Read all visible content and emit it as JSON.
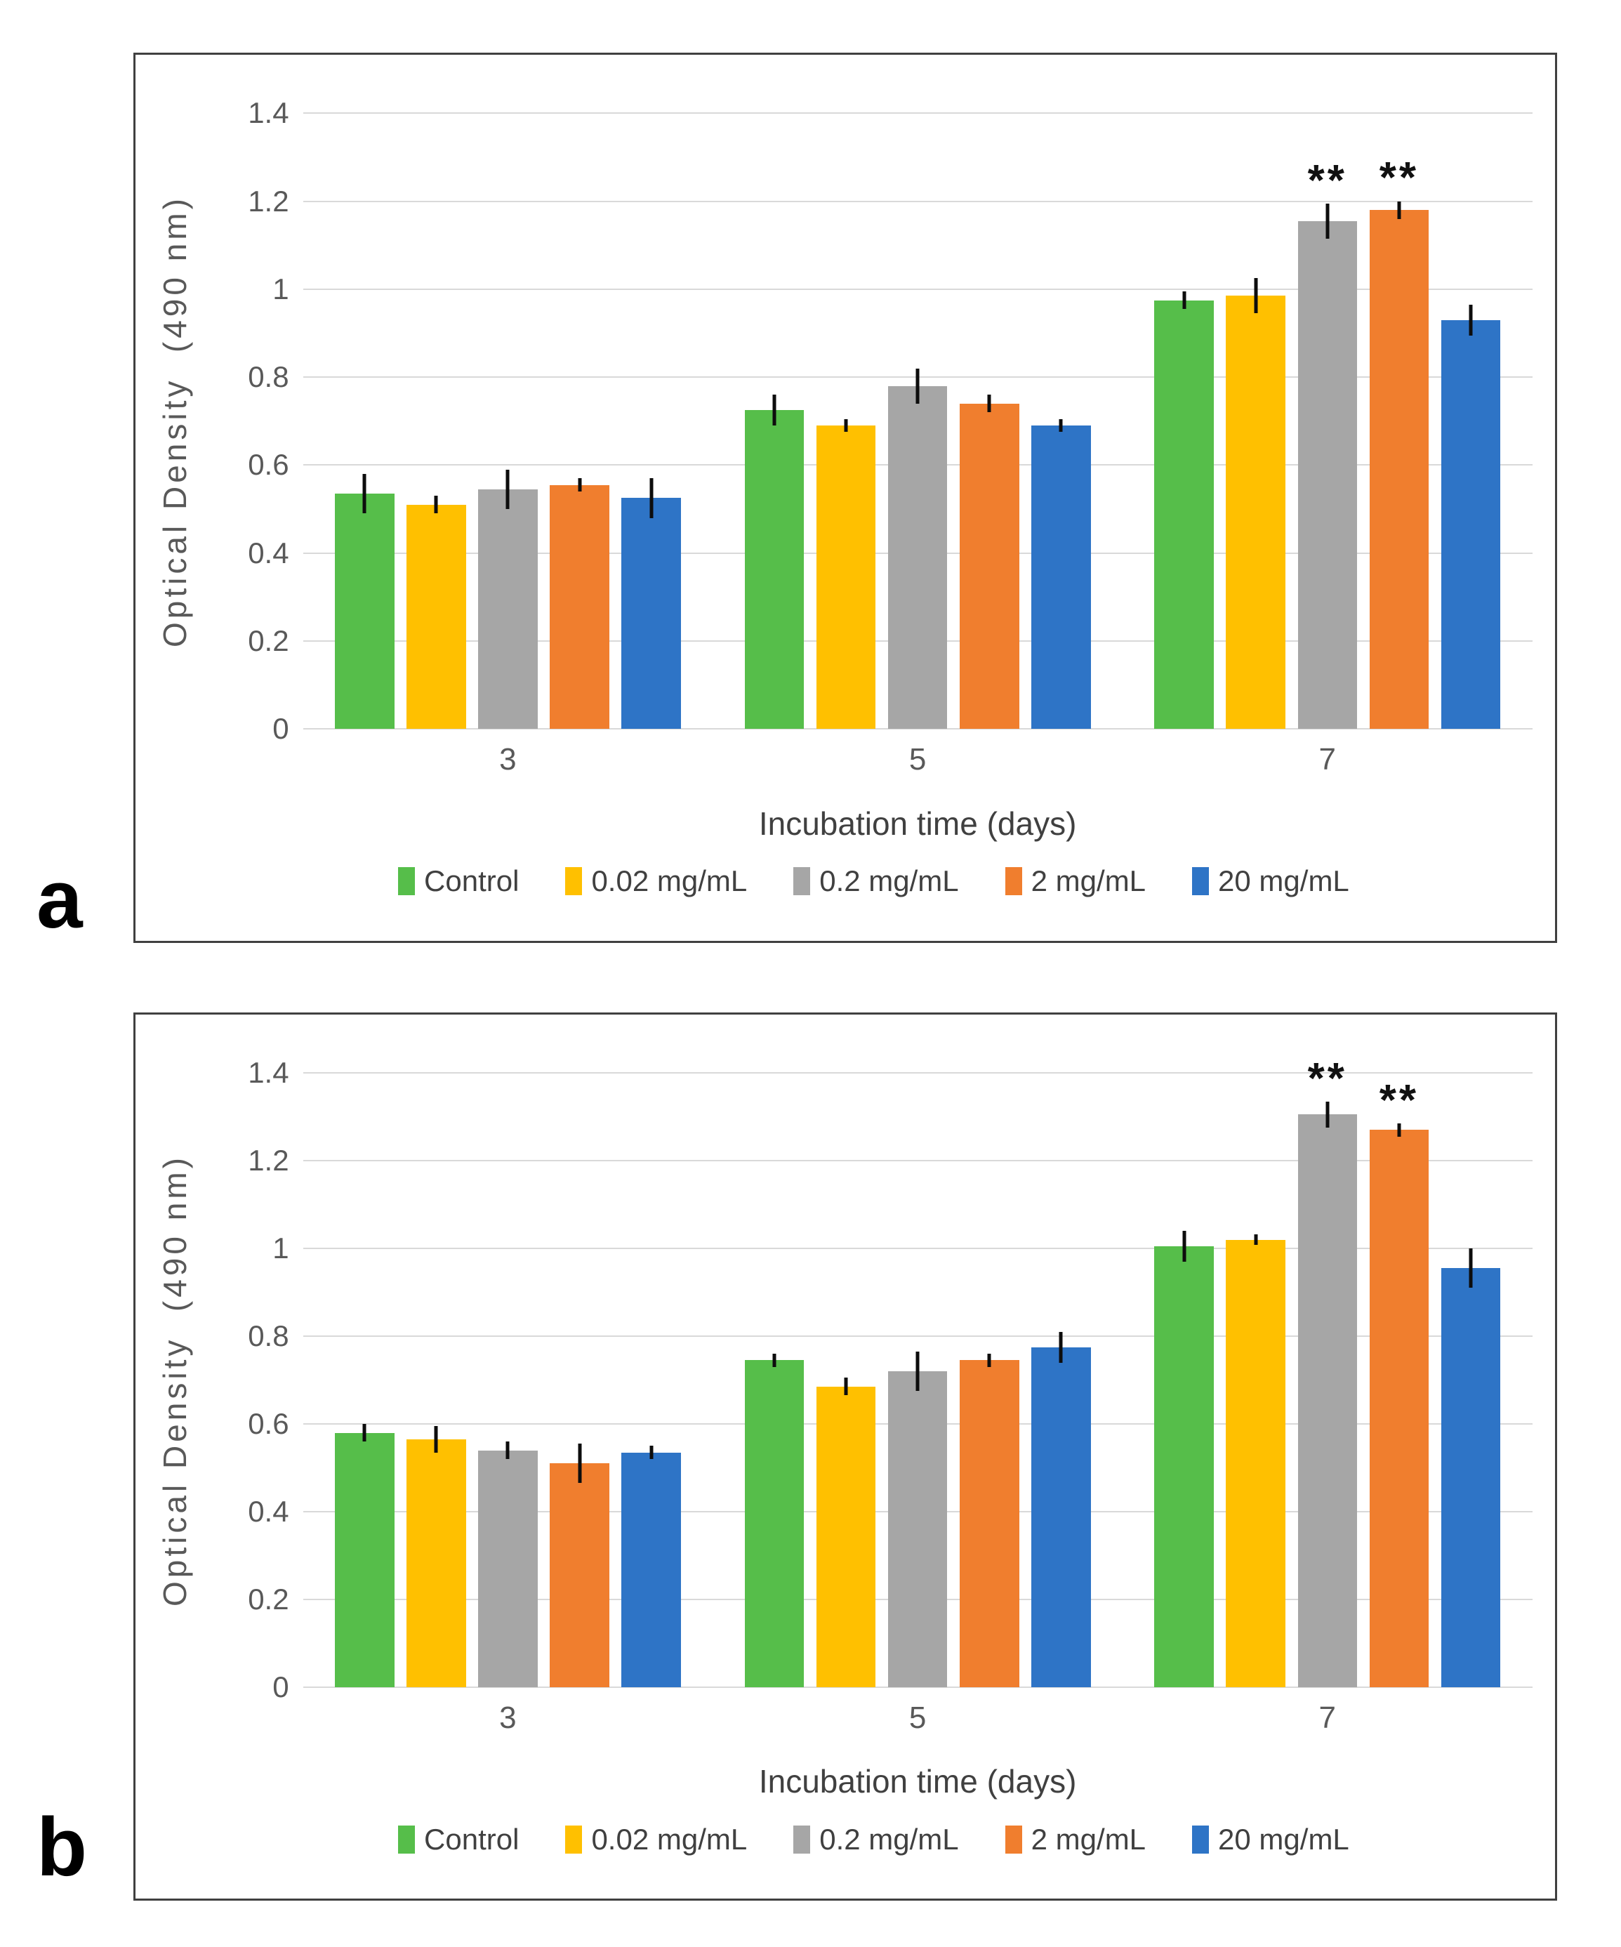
{
  "figure": {
    "panels": [
      {
        "panel_label": "a",
        "chart_data": {
          "type": "bar",
          "title": "",
          "xlabel": "Incubation time (days)",
          "ylabel": "Optical Density  (490 nm)",
          "ylim": [
            0,
            1.4
          ],
          "yticks": [
            "1.4",
            "1.2",
            "1",
            "0.8",
            "0.6",
            "0.4",
            "0.2",
            "0"
          ],
          "grid": true,
          "legend_position": "bottom",
          "categories": [
            "3",
            "5",
            "7"
          ],
          "series": [
            {
              "name": "Control",
              "color": "#56BE4A",
              "values": [
                0.535,
                0.725,
                0.975
              ],
              "errors": [
                0.045,
                0.035,
                0.02
              ],
              "sig": [
                "",
                "",
                ""
              ]
            },
            {
              "name": "0.02 mg/mL",
              "color": "#FFC000",
              "values": [
                0.51,
                0.69,
                0.985
              ],
              "errors": [
                0.02,
                0.015,
                0.04
              ],
              "sig": [
                "",
                "",
                ""
              ]
            },
            {
              "name": "0.2 mg/mL",
              "color": "#A6A6A6",
              "values": [
                0.545,
                0.78,
                1.155
              ],
              "errors": [
                0.045,
                0.04,
                0.04
              ],
              "sig": [
                "",
                "",
                "**"
              ]
            },
            {
              "name": "2 mg/mL",
              "color": "#F07E2E",
              "values": [
                0.555,
                0.74,
                1.18
              ],
              "errors": [
                0.015,
                0.02,
                0.02
              ],
              "sig": [
                "",
                "",
                "**"
              ]
            },
            {
              "name": "20 mg/mL",
              "color": "#2E74C6",
              "values": [
                0.525,
                0.69,
                0.93
              ],
              "errors": [
                0.045,
                0.015,
                0.035
              ],
              "sig": [
                "",
                "",
                ""
              ]
            }
          ]
        }
      },
      {
        "panel_label": "b",
        "chart_data": {
          "type": "bar",
          "title": "",
          "xlabel": "Incubation time (days)",
          "ylabel": "Optical Density  (490 nm)",
          "ylim": [
            0,
            1.4
          ],
          "yticks": [
            "1.4",
            "1.2",
            "1",
            "0.8",
            "0.6",
            "0.4",
            "0.2",
            "0"
          ],
          "grid": true,
          "legend_position": "bottom",
          "categories": [
            "3",
            "5",
            "7"
          ],
          "series": [
            {
              "name": "Control",
              "color": "#56BE4A",
              "values": [
                0.58,
                0.745,
                1.005
              ],
              "errors": [
                0.02,
                0.015,
                0.035
              ],
              "sig": [
                "",
                "",
                ""
              ]
            },
            {
              "name": "0.02 mg/mL",
              "color": "#FFC000",
              "values": [
                0.565,
                0.685,
                1.02
              ],
              "errors": [
                0.03,
                0.02,
                0.012
              ],
              "sig": [
                "",
                "",
                ""
              ]
            },
            {
              "name": "0.2 mg/mL",
              "color": "#A6A6A6",
              "values": [
                0.54,
                0.72,
                1.305
              ],
              "errors": [
                0.02,
                0.045,
                0.03
              ],
              "sig": [
                "",
                "",
                "**"
              ]
            },
            {
              "name": "2 mg/mL",
              "color": "#F07E2E",
              "values": [
                0.51,
                0.745,
                1.27
              ],
              "errors": [
                0.045,
                0.015,
                0.015
              ],
              "sig": [
                "",
                "",
                "**"
              ]
            },
            {
              "name": "20 mg/mL",
              "color": "#2E74C6",
              "values": [
                0.535,
                0.775,
                0.955
              ],
              "errors": [
                0.015,
                0.035,
                0.045
              ],
              "sig": [
                "",
                "",
                ""
              ]
            }
          ]
        }
      }
    ]
  }
}
